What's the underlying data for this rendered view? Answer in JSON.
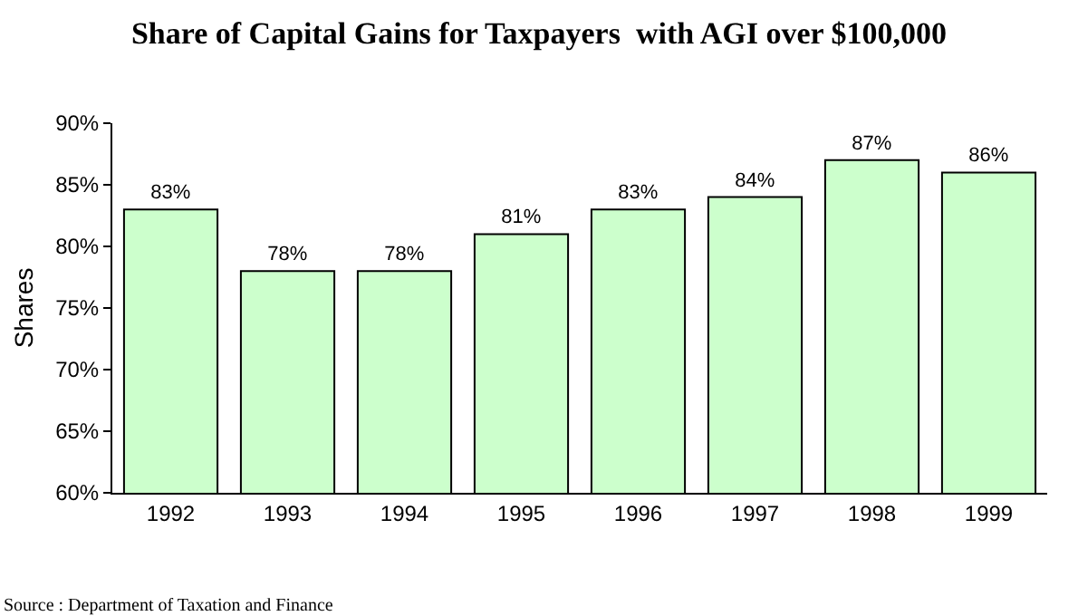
{
  "chart_data": {
    "type": "bar",
    "title": "Share of Capital Gains for Taxpayers  with AGI over $100,000",
    "ylabel": "Shares",
    "categories": [
      "1992",
      "1993",
      "1994",
      "1995",
      "1996",
      "1997",
      "1998",
      "1999"
    ],
    "values": [
      83,
      78,
      78,
      81,
      83,
      84,
      87,
      86
    ],
    "value_labels": [
      "83%",
      "78%",
      "78%",
      "81%",
      "83%",
      "84%",
      "87%",
      "86%"
    ],
    "color": "#ccffcc",
    "ylim": [
      60,
      90
    ],
    "yticks": [
      {
        "value": 60,
        "label": "60%"
      },
      {
        "value": 65,
        "label": "65%"
      },
      {
        "value": 70,
        "label": "70%"
      },
      {
        "value": 75,
        "label": "75%"
      },
      {
        "value": 80,
        "label": "80%"
      },
      {
        "value": 85,
        "label": "85%"
      },
      {
        "value": 90,
        "label": "90%"
      }
    ],
    "legend": false,
    "annotations": [
      "Source : Department of Taxation and Finance"
    ]
  }
}
